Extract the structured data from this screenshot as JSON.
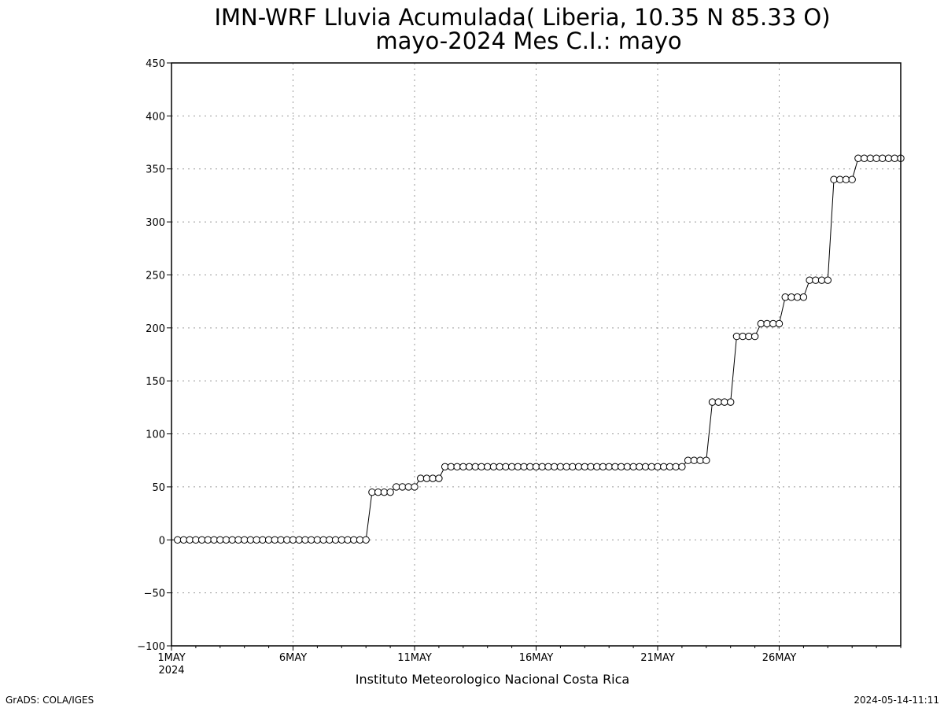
{
  "chart_data": {
    "type": "line",
    "title": "IMN-WRF  Lluvia Acumulada( Liberia, 10.35  N 85.33  O)",
    "subtitle": "mayo-2024 Mes C.I.: mayo",
    "credit": "Instituto Meteorologico Nacional Costa Rica",
    "footer_left": "GrADS: COLA/IGES",
    "footer_right": "2024-05-14-11:11",
    "ylim": [
      -100,
      450
    ],
    "yticks": [
      -100,
      -50,
      0,
      50,
      100,
      150,
      200,
      250,
      300,
      350,
      400,
      450
    ],
    "xlim": [
      "2024-05-01",
      "2024-05-31"
    ],
    "xticks": [
      {
        "day": 1,
        "label": "1MAY",
        "sublabel": "2024"
      },
      {
        "day": 6,
        "label": "6MAY",
        "sublabel": ""
      },
      {
        "day": 11,
        "label": "11MAY",
        "sublabel": ""
      },
      {
        "day": 16,
        "label": "16MAY",
        "sublabel": ""
      },
      {
        "day": 21,
        "label": "21MAY",
        "sublabel": ""
      },
      {
        "day": 26,
        "label": "26MAY",
        "sublabel": ""
      }
    ],
    "grid": true,
    "time_step_hours": 6,
    "series": [
      {
        "marker": "open-circle",
        "color": "#000000",
        "values": [
          0,
          0,
          0,
          0,
          0,
          0,
          0,
          0,
          0,
          0,
          0,
          0,
          0,
          0,
          0,
          0,
          0,
          0,
          0,
          0,
          0,
          0,
          0,
          0,
          0,
          0,
          0,
          0,
          0,
          0,
          0,
          0,
          45,
          45,
          45,
          45,
          50,
          50,
          50,
          50,
          58,
          58,
          58,
          58,
          69,
          69,
          69,
          69,
          69,
          69,
          69,
          69,
          69,
          69,
          69,
          69,
          69,
          69,
          69,
          69,
          69,
          69,
          69,
          69,
          69,
          69,
          69,
          69,
          69,
          69,
          69,
          69,
          69,
          69,
          69,
          69,
          69,
          69,
          69,
          69,
          69,
          69,
          69,
          69,
          75,
          75,
          75,
          75,
          130,
          130,
          130,
          130,
          192,
          192,
          192,
          192,
          204,
          204,
          204,
          204,
          229,
          229,
          229,
          229,
          245,
          245,
          245,
          245,
          340,
          340,
          340,
          340,
          360,
          360,
          360,
          360,
          360,
          360,
          360,
          360
        ]
      }
    ]
  }
}
